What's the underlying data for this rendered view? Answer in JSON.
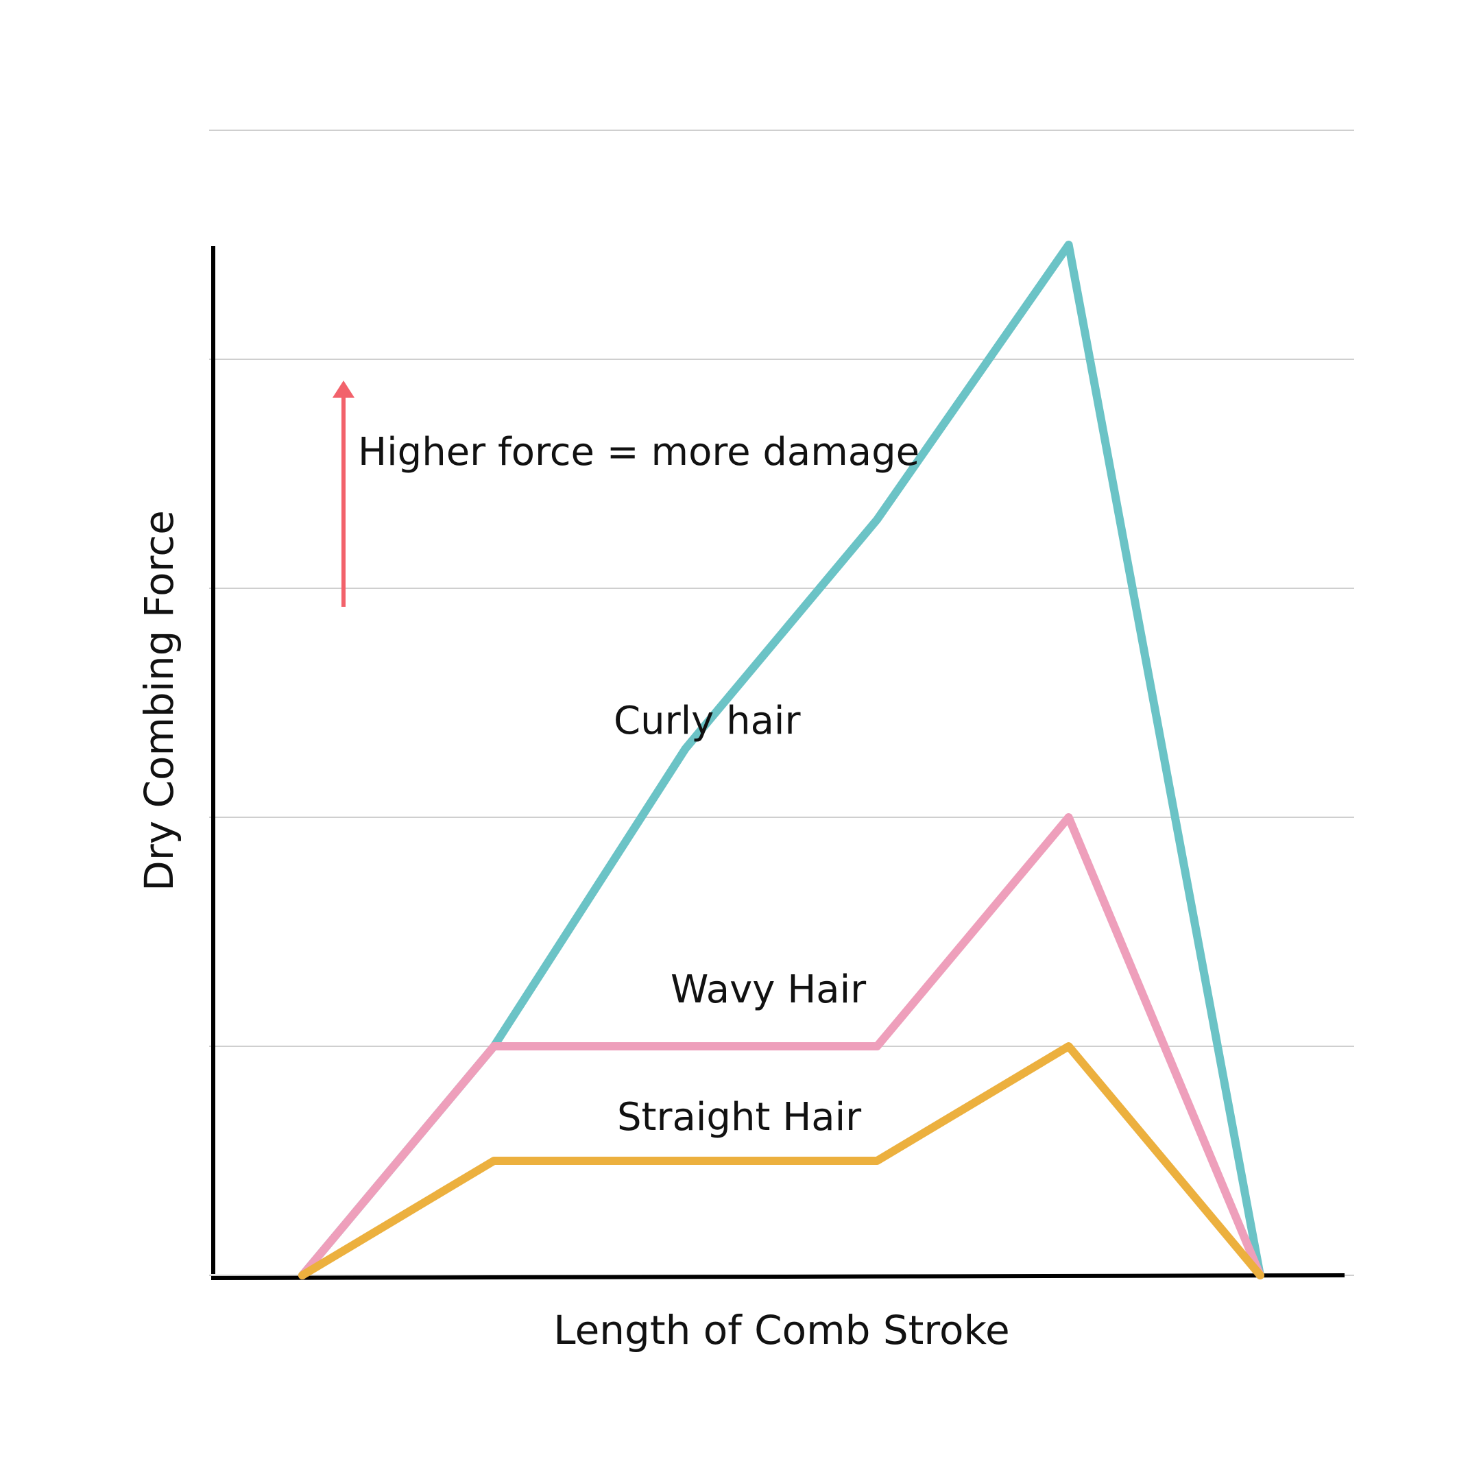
{
  "chart_data": {
    "type": "line",
    "title": "",
    "xlabel": "Length of Comb Stroke",
    "ylabel": "Dry Combing Force",
    "x": [
      0,
      1,
      2,
      3,
      4,
      5
    ],
    "xlim": [
      -0.5,
      5.5
    ],
    "ylim": [
      0,
      5
    ],
    "grid": true,
    "legend": "none",
    "series": [
      {
        "name": "Curly hair",
        "color": "#6bc3c6",
        "values": [
          0,
          1,
          2.3,
          3.3,
          4.5,
          0
        ]
      },
      {
        "name": "Wavy Hair",
        "color": "#ee9fbb",
        "values": [
          0,
          1,
          1,
          1,
          2,
          0
        ]
      },
      {
        "name": "Straight Hair",
        "color": "#ecb03e",
        "values": [
          0,
          0.5,
          0.5,
          0.5,
          1,
          0
        ]
      }
    ],
    "annotations": [
      {
        "text": "Higher force = more damage",
        "marker": "arrow-up",
        "color": "#f2626b"
      }
    ]
  }
}
